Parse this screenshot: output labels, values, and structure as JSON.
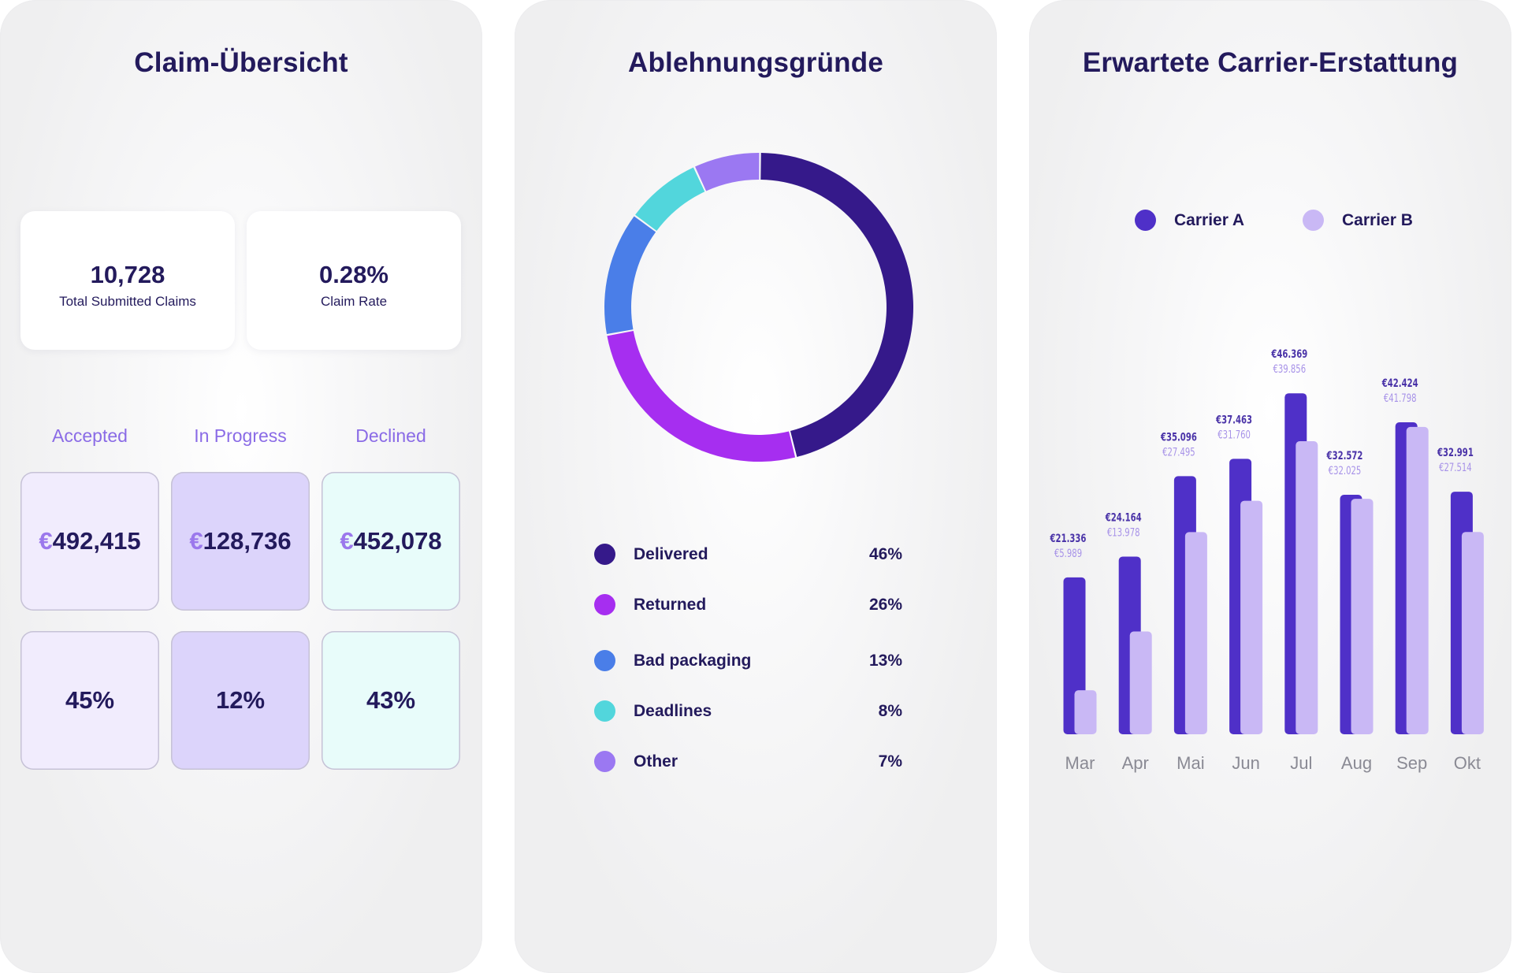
{
  "overview": {
    "title": "Claim-Übersicht",
    "total_claims": {
      "value": "10,728",
      "label": "Total Submitted Claims"
    },
    "claim_rate": {
      "value": "0.28%",
      "label": "Claim Rate"
    },
    "columns": [
      {
        "label": "Accepted",
        "currency": "€",
        "amount": "492,415",
        "percent": "45%"
      },
      {
        "label": "In Progress",
        "currency": "€",
        "amount": "128,736",
        "percent": "12%"
      },
      {
        "label": "Declined",
        "currency": "€",
        "amount": "452,078",
        "percent": "43%"
      }
    ]
  },
  "rejection": {
    "title": "Ablehnungsgründe",
    "items": [
      {
        "label": "Delivered",
        "percent": "46%",
        "value": 46,
        "color": "#35198a"
      },
      {
        "label": "Returned",
        "percent": "26%",
        "value": 26,
        "color": "#a62ef0"
      },
      {
        "label": "Bad packaging",
        "percent": "13%",
        "value": 13,
        "color": "#4a7ee8"
      },
      {
        "label": "Deadlines",
        "percent": "8%",
        "value": 8,
        "color": "#52d6dc"
      },
      {
        "label": "Other",
        "percent": "7%",
        "value": 7,
        "color": "#9b78f2"
      }
    ]
  },
  "refund": {
    "title": "Erwartete Carrier-Erstattung",
    "legend": [
      {
        "name": "Carrier A",
        "color": "#4f30c8"
      },
      {
        "name": "Carrier B",
        "color": "#c9b8f5"
      }
    ]
  },
  "chart_data": {
    "type": "bar",
    "title": "Erwartete Carrier-Erstattung",
    "categories": [
      "Mar",
      "Apr",
      "Mai",
      "Jun",
      "Jul",
      "Aug",
      "Sep",
      "Okt"
    ],
    "series": [
      {
        "name": "Carrier A",
        "color": "#4f30c8",
        "values": [
          21336,
          24164,
          35096,
          37463,
          46369,
          32572,
          42424,
          32991
        ],
        "labels": [
          "€21.336",
          "€24.164",
          "€35.096",
          "€37.463",
          "€46.369",
          "€32.572",
          "€42.424",
          "€32.991"
        ]
      },
      {
        "name": "Carrier B",
        "color": "#c9b8f5",
        "values": [
          5989,
          13978,
          27495,
          31760,
          39856,
          32025,
          41798,
          27514
        ],
        "labels": [
          "€5.989",
          "€13.978",
          "€27.495",
          "€31.760",
          "€39.856",
          "€32.025",
          "€41.798",
          "€27.514"
        ]
      }
    ],
    "ylim": [
      0,
      48000
    ],
    "grid": false,
    "legend_position": "top"
  }
}
